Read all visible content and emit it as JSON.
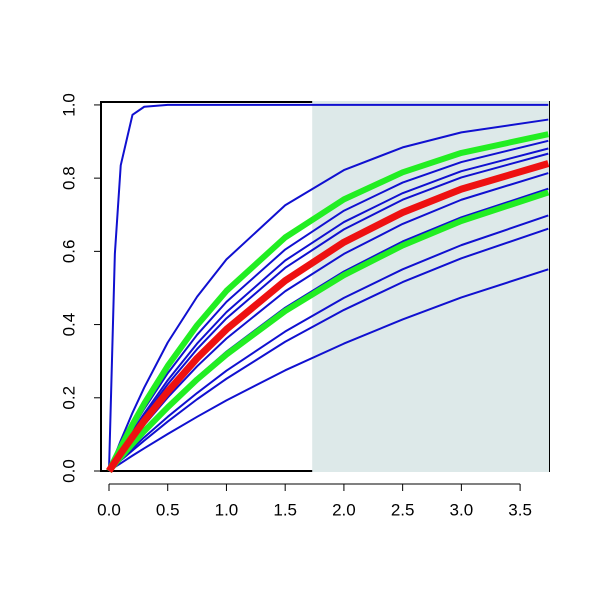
{
  "chart_data": {
    "type": "line",
    "x": [
      0,
      0.05,
      0.1,
      0.2,
      0.3,
      0.5,
      0.75,
      1,
      1.5,
      2,
      2.5,
      3,
      3.74
    ],
    "series": [
      {
        "color": "#1010d0",
        "line_width": 2,
        "values": [
          0,
          0.593,
          0.835,
          0.973,
          0.995,
          1,
          1,
          1,
          1,
          1,
          1,
          1,
          1
        ]
      },
      {
        "color": "#1010d0",
        "line_width": 2,
        "values": [
          0,
          0.042,
          0.083,
          0.159,
          0.228,
          0.351,
          0.476,
          0.578,
          0.726,
          0.822,
          0.884,
          0.925,
          0.96
        ]
      },
      {
        "color": "#1010d0",
        "line_width": 2,
        "values": [
          0,
          0.031,
          0.06,
          0.117,
          0.17,
          0.267,
          0.372,
          0.462,
          0.605,
          0.711,
          0.788,
          0.844,
          0.902
        ]
      },
      {
        "color": "#1010d0",
        "line_width": 2,
        "values": [
          0,
          0.028,
          0.055,
          0.108,
          0.157,
          0.248,
          0.348,
          0.434,
          0.575,
          0.68,
          0.759,
          0.819,
          0.881
        ]
      },
      {
        "color": "#1010d0",
        "line_width": 2,
        "values": [
          0,
          0.027,
          0.053,
          0.102,
          0.15,
          0.237,
          0.333,
          0.417,
          0.555,
          0.66,
          0.741,
          0.802,
          0.867
        ]
      },
      {
        "color": "#1010d0",
        "line_width": 2,
        "values": [
          0,
          0.022,
          0.044,
          0.086,
          0.126,
          0.201,
          0.286,
          0.362,
          0.491,
          0.593,
          0.675,
          0.741,
          0.814
        ]
      },
      {
        "color": "#1010d0",
        "line_width": 2,
        "values": [
          0,
          0.02,
          0.039,
          0.076,
          0.111,
          0.179,
          0.256,
          0.326,
          0.446,
          0.545,
          0.627,
          0.693,
          0.771
        ]
      },
      {
        "color": "#1010d0",
        "line_width": 2,
        "values": [
          0,
          0.016,
          0.031,
          0.062,
          0.092,
          0.148,
          0.213,
          0.274,
          0.381,
          0.473,
          0.551,
          0.617,
          0.698
        ]
      },
      {
        "color": "#1010d0",
        "line_width": 2,
        "values": [
          0,
          0.014,
          0.029,
          0.056,
          0.083,
          0.135,
          0.196,
          0.252,
          0.353,
          0.44,
          0.516,
          0.581,
          0.662
        ]
      },
      {
        "color": "#1010d0",
        "line_width": 2,
        "values": [
          0,
          0.011,
          0.021,
          0.042,
          0.062,
          0.101,
          0.148,
          0.193,
          0.275,
          0.348,
          0.414,
          0.474,
          0.551
        ]
      },
      {
        "color": "#22ee22",
        "line_width": 6,
        "values": [
          0,
          0.033,
          0.065,
          0.127,
          0.184,
          0.287,
          0.398,
          0.492,
          0.638,
          0.742,
          0.816,
          0.869,
          0.92
        ]
      },
      {
        "color": "#22ee22",
        "line_width": 6,
        "values": [
          0,
          0.019,
          0.038,
          0.074,
          0.109,
          0.174,
          0.25,
          0.318,
          0.437,
          0.535,
          0.616,
          0.683,
          0.761
        ]
      },
      {
        "color": "#ee1111",
        "line_width": 7,
        "values": [
          0,
          0.024,
          0.048,
          0.093,
          0.137,
          0.217,
          0.308,
          0.387,
          0.52,
          0.625,
          0.706,
          0.77,
          0.84
        ]
      }
    ],
    "shaded_xrange": [
      1.73,
      3.746
    ],
    "shade_color": "#dde9e9",
    "xlim": [
      -0.068,
      3.746
    ],
    "xticks": [
      {
        "value": 0,
        "label": "0.0"
      },
      0.5,
      {
        "value": 1,
        "label": "1.0"
      },
      1.5,
      {
        "value": 2,
        "label": "2.0"
      },
      2.5,
      {
        "value": 3,
        "label": "3.0"
      },
      3.5
    ],
    "ylim": [
      0,
      1.008
    ],
    "yticks": [
      {
        "value": 0,
        "label": "0.0"
      },
      0.2,
      0.4,
      0.6,
      0.8,
      {
        "value": 1,
        "label": "1.0"
      }
    ]
  }
}
